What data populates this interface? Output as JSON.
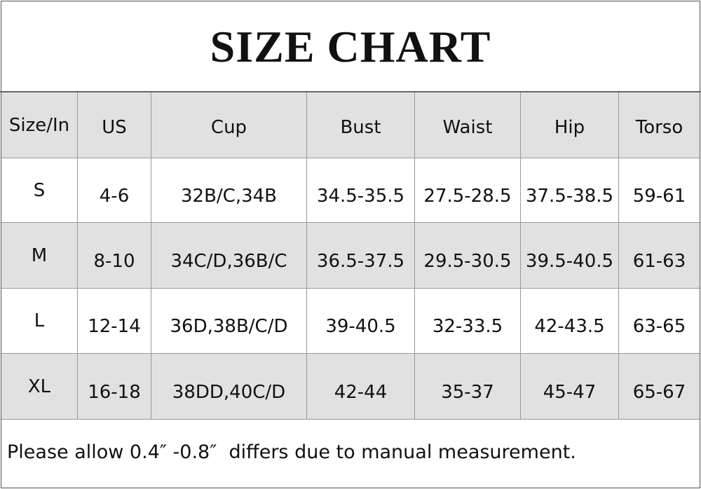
{
  "header": {
    "title": "SIZE CHART"
  },
  "table": {
    "columns": [
      "Size/In",
      "US",
      "Cup",
      "Bust",
      "Waist",
      "Hip",
      "Torso"
    ],
    "rows": [
      [
        "S",
        "4-6",
        "32B/C,34B",
        "34.5-35.5",
        "27.5-28.5",
        "37.5-38.5",
        "59-61"
      ],
      [
        "M",
        "8-10",
        "34C/D,36B/C",
        "36.5-37.5",
        "29.5-30.5",
        "39.5-40.5",
        "61-63"
      ],
      [
        "L",
        "12-14",
        "36D,38B/C/D",
        "39-40.5",
        "32-33.5",
        "42-43.5",
        "63-65"
      ],
      [
        "XL",
        "16-18",
        "38DD,40C/D",
        "42-44",
        "35-37",
        "45-47",
        "65-67"
      ]
    ]
  },
  "footer": {
    "note": "Please allow 0.4″ -0.8″  differs due to manual measurement."
  }
}
